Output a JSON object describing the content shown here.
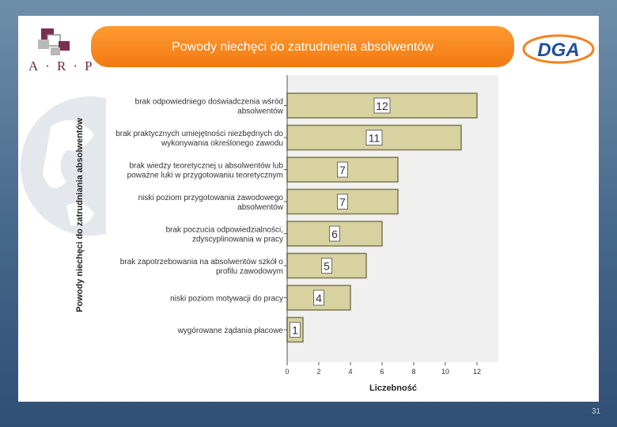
{
  "slide": {
    "title": "Powody niechęci do zatrudnienia absolwentów",
    "page_number": "31",
    "logo_left_text": "A·R·P",
    "logo_right_text": "DGA"
  },
  "colors": {
    "title_bar": "#f58220",
    "bar_fill": "#d8d2a0",
    "bar_stroke": "#7d7650",
    "plot_bg": "#f0f0f0"
  },
  "chart_data": {
    "type": "bar",
    "orientation": "horizontal",
    "title": "",
    "xlabel": "Liczebność",
    "ylabel": "Powody niechęci do zatrudniania absolwentów",
    "xlim": [
      0,
      13
    ],
    "xticks": [
      0,
      2,
      4,
      6,
      8,
      10,
      12
    ],
    "grid": false,
    "categories": [
      [
        "brak odpowiedniego doświadczenia wśród",
        "absolwentów"
      ],
      [
        "brak praktycznych umiejętności niezbędnych do",
        "wykonywania określonego zawodu"
      ],
      [
        "brak wiedzy teoretycznej u absolwentów lub",
        "poważne luki w przygotowaniu teoretycznym"
      ],
      [
        "niski poziom przygotowania zawodowego",
        "absolwentów"
      ],
      [
        "brak poczucia odpowiedzialności,",
        "zdyscyplinowania w pracy"
      ],
      [
        "brak zapotrzebowania na absolwentów szkół o",
        "profilu zawodowym"
      ],
      [
        "niski poziom motywacji do pracy"
      ],
      [
        "wygórowane żądania płacowe"
      ]
    ],
    "values": [
      12,
      11,
      7,
      7,
      6,
      5,
      4,
      1
    ],
    "data_labels": [
      "12",
      "11",
      "7",
      "7",
      "6",
      "5",
      "4",
      "1"
    ]
  }
}
